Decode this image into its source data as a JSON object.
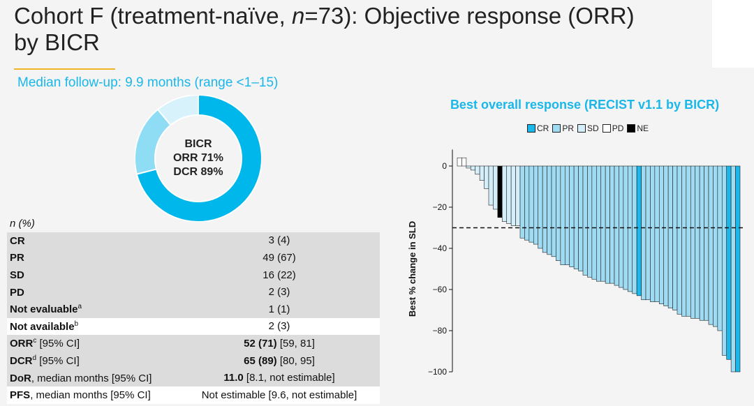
{
  "slide": {
    "title_line1_prefix": "Cohort F (treatment-naïve, ",
    "title_n": "n",
    "title_line1_suffix": "=73): Objective response (ORR)",
    "title_line2": "by BICR",
    "followup": "Median follow-up: 9.9 months (range <1–15)"
  },
  "donut": {
    "center_line1": "BICR",
    "center_line2": "ORR 71%",
    "center_line3": "DCR 89%",
    "segments": [
      {
        "name": "ORR",
        "fraction": 0.71,
        "color": "#00b7eb"
      },
      {
        "name": "SD",
        "fraction": 0.18,
        "color": "#8fdcf5"
      },
      {
        "name": "other",
        "fraction": 0.11,
        "color": "#d7f2fb"
      }
    ]
  },
  "table": {
    "header": "n (%)",
    "rows": [
      {
        "label": "CR",
        "sup": "",
        "extra": "",
        "value_bold": "",
        "value": "3 (4)"
      },
      {
        "label": "PR",
        "sup": "",
        "extra": "",
        "value_bold": "",
        "value": "49 (67)"
      },
      {
        "label": "SD",
        "sup": "",
        "extra": "",
        "value_bold": "",
        "value": "16 (22)"
      },
      {
        "label": "PD",
        "sup": "",
        "extra": "",
        "value_bold": "",
        "value": "2 (3)"
      },
      {
        "label": "Not evaluable",
        "sup": "a",
        "extra": "",
        "value_bold": "",
        "value": "1 (1)"
      },
      {
        "label": "Not available",
        "sup": "b",
        "extra": "",
        "value_bold": "",
        "value": "2 (3)"
      },
      {
        "label": "ORR",
        "sup": "c",
        "extra": " [95% CI]",
        "value_bold": "52 (71)",
        "value": " [59, 81]"
      },
      {
        "label": "DCR",
        "sup": "d",
        "extra": " [95% CI]",
        "value_bold": "65 (89)",
        "value": " [80, 95]"
      },
      {
        "label": "DoR",
        "sup": "",
        "extra": ", median months  [95% CI]",
        "value_bold": "11.0",
        "value": " [8.1, not estimable]"
      },
      {
        "label": "PFS",
        "sup": "",
        "extra": ", median months [95% CI]",
        "value_bold": "",
        "value": "Not estimable [9.6, not estimable]"
      }
    ]
  },
  "chart_data": {
    "type": "bar",
    "title": "Best overall response (RECIST v1.1 by BICR)",
    "ylabel": "Best % change in SLD",
    "ylim": [
      -100,
      8
    ],
    "yticks": [
      0,
      -20,
      -40,
      -60,
      -80,
      -100
    ],
    "reference_line": -30,
    "legend": [
      {
        "name": "CR",
        "color": "#1ab7ea"
      },
      {
        "name": "PR",
        "color": "#9fdbf2"
      },
      {
        "name": "SD",
        "color": "#d4effa"
      },
      {
        "name": "PD",
        "color": "#ffffff"
      },
      {
        "name": "NE",
        "color": "#000000"
      }
    ],
    "colors": {
      "CR": "#1ab7ea",
      "PR": "#9fdbf2",
      "SD": "#d4effa",
      "PD": "#ffffff",
      "NE": "#000000"
    },
    "bars": [
      {
        "v": 4,
        "r": "PD"
      },
      {
        "v": 4,
        "r": "PD"
      },
      {
        "v": -1,
        "r": "SD"
      },
      {
        "v": -2,
        "r": "SD"
      },
      {
        "v": -4,
        "r": "SD"
      },
      {
        "v": -7,
        "r": "SD"
      },
      {
        "v": -11,
        "r": "SD"
      },
      {
        "v": -19,
        "r": "SD"
      },
      {
        "v": -21,
        "r": "SD"
      },
      {
        "v": -25,
        "r": "NE"
      },
      {
        "v": -27,
        "r": "SD"
      },
      {
        "v": -28,
        "r": "SD"
      },
      {
        "v": -29,
        "r": "SD"
      },
      {
        "v": -29,
        "r": "SD"
      },
      {
        "v": -35,
        "r": "PR"
      },
      {
        "v": -36,
        "r": "PR"
      },
      {
        "v": -37,
        "r": "PR"
      },
      {
        "v": -38,
        "r": "PR"
      },
      {
        "v": -40,
        "r": "PR"
      },
      {
        "v": -42,
        "r": "PR"
      },
      {
        "v": -43,
        "r": "PR"
      },
      {
        "v": -44,
        "r": "PR"
      },
      {
        "v": -46,
        "r": "PR"
      },
      {
        "v": -48,
        "r": "PR"
      },
      {
        "v": -48,
        "r": "PR"
      },
      {
        "v": -49,
        "r": "PR"
      },
      {
        "v": -50,
        "r": "PR"
      },
      {
        "v": -51,
        "r": "PR"
      },
      {
        "v": -53,
        "r": "PR"
      },
      {
        "v": -54,
        "r": "PR"
      },
      {
        "v": -55,
        "r": "PR"
      },
      {
        "v": -56,
        "r": "PR"
      },
      {
        "v": -56,
        "r": "PR"
      },
      {
        "v": -57,
        "r": "PR"
      },
      {
        "v": -57,
        "r": "PR"
      },
      {
        "v": -58,
        "r": "PR"
      },
      {
        "v": -59,
        "r": "PR"
      },
      {
        "v": -60,
        "r": "PR"
      },
      {
        "v": -61,
        "r": "PR"
      },
      {
        "v": -62,
        "r": "PR"
      },
      {
        "v": -63,
        "r": "CR"
      },
      {
        "v": -65,
        "r": "PR"
      },
      {
        "v": -65,
        "r": "PR"
      },
      {
        "v": -66,
        "r": "PR"
      },
      {
        "v": -66,
        "r": "PR"
      },
      {
        "v": -67,
        "r": "PR"
      },
      {
        "v": -68,
        "r": "PR"
      },
      {
        "v": -69,
        "r": "PR"
      },
      {
        "v": -70,
        "r": "PR"
      },
      {
        "v": -72,
        "r": "PR"
      },
      {
        "v": -73,
        "r": "PR"
      },
      {
        "v": -73,
        "r": "PR"
      },
      {
        "v": -74,
        "r": "PR"
      },
      {
        "v": -74,
        "r": "PR"
      },
      {
        "v": -75,
        "r": "PR"
      },
      {
        "v": -75,
        "r": "PR"
      },
      {
        "v": -77,
        "r": "PR"
      },
      {
        "v": -78,
        "r": "PR"
      },
      {
        "v": -80,
        "r": "PR"
      },
      {
        "v": -92,
        "r": "PR"
      },
      {
        "v": -94,
        "r": "CR"
      },
      {
        "v": -100,
        "r": "PR"
      },
      {
        "v": -100,
        "r": "CR"
      }
    ]
  }
}
